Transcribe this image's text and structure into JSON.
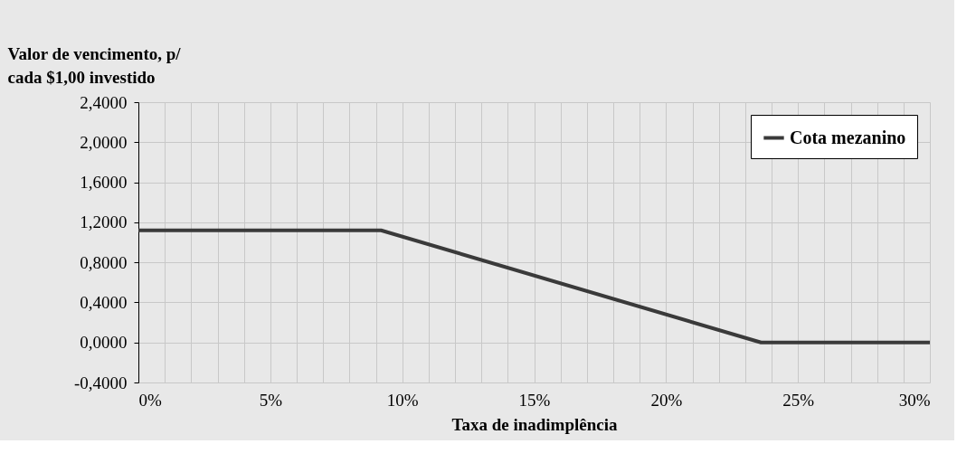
{
  "chart_data": {
    "type": "line",
    "ylabel": "Valor de vencimento, p/\ncada $1,00 investido",
    "xlabel": "Taxa de inadimplência",
    "x": [
      0,
      9.2,
      23.6,
      30
    ],
    "series": [
      {
        "name": "Cota mezanino",
        "color": "#3a3a3a",
        "values": [
          1.12,
          1.12,
          0,
          0
        ]
      }
    ],
    "xlim": [
      0,
      30
    ],
    "xticks": [
      {
        "value": 0,
        "label": "0%"
      },
      {
        "value": 1,
        "label": null
      },
      {
        "value": 2,
        "label": null
      },
      {
        "value": 3,
        "label": null
      },
      {
        "value": 4,
        "label": null
      },
      {
        "value": 5,
        "label": "5%"
      },
      {
        "value": 6,
        "label": null
      },
      {
        "value": 7,
        "label": null
      },
      {
        "value": 8,
        "label": null
      },
      {
        "value": 9,
        "label": null
      },
      {
        "value": 10,
        "label": "10%"
      },
      {
        "value": 11,
        "label": null
      },
      {
        "value": 12,
        "label": null
      },
      {
        "value": 13,
        "label": null
      },
      {
        "value": 14,
        "label": null
      },
      {
        "value": 15,
        "label": "15%"
      },
      {
        "value": 16,
        "label": null
      },
      {
        "value": 17,
        "label": null
      },
      {
        "value": 18,
        "label": null
      },
      {
        "value": 19,
        "label": null
      },
      {
        "value": 20,
        "label": "20%"
      },
      {
        "value": 21,
        "label": null
      },
      {
        "value": 22,
        "label": null
      },
      {
        "value": 23,
        "label": null
      },
      {
        "value": 24,
        "label": null
      },
      {
        "value": 25,
        "label": "25%"
      },
      {
        "value": 26,
        "label": null
      },
      {
        "value": 27,
        "label": null
      },
      {
        "value": 28,
        "label": null
      },
      {
        "value": 29,
        "label": null
      },
      {
        "value": 30,
        "label": "30%"
      }
    ],
    "ylim": [
      -0.4,
      2.4
    ],
    "yticks": [
      {
        "value": -0.4,
        "label": "-0,4000"
      },
      {
        "value": 0,
        "label": "0,0000"
      },
      {
        "value": 0.4,
        "label": "0,4000"
      },
      {
        "value": 0.8,
        "label": "0,8000"
      },
      {
        "value": 1.2,
        "label": "1,2000"
      },
      {
        "value": 1.6,
        "label": "1,6000"
      },
      {
        "value": 2.0,
        "label": "2,0000"
      },
      {
        "value": 2.4,
        "label": "2,4000"
      }
    ],
    "grid": true,
    "legend": "top right",
    "marker": "none",
    "line_style": "solid"
  }
}
